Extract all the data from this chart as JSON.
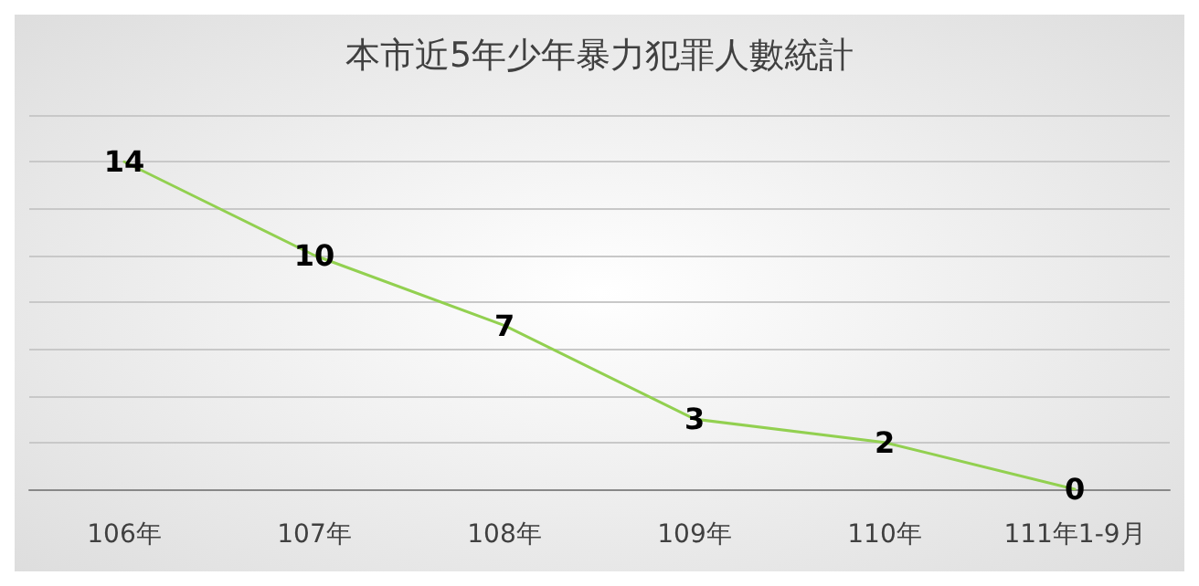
{
  "chart_data": {
    "type": "line",
    "title": "本市近5年少年暴力犯罪人數統計",
    "categories": [
      "106年",
      "107年",
      "108年",
      "109年",
      "110年",
      "111年1-9月"
    ],
    "series": [
      {
        "color": "#92d050",
        "values": [
          14,
          10,
          7,
          3,
          2,
          0
        ]
      }
    ],
    "ylim": [
      0,
      16
    ],
    "yticks": [
      {
        "value": 0,
        "label": null
      },
      {
        "value": 2,
        "label": null
      },
      {
        "value": 4,
        "label": null
      },
      {
        "value": 6,
        "label": null
      },
      {
        "value": 8,
        "label": null
      },
      {
        "value": 10,
        "label": null
      },
      {
        "value": 12,
        "label": null
      },
      {
        "value": 14,
        "label": null
      },
      {
        "value": 16,
        "label": null
      }
    ],
    "tick_labels": "x",
    "grid": "y",
    "data_labels": true,
    "marker": "none",
    "line_style": "solid"
  }
}
